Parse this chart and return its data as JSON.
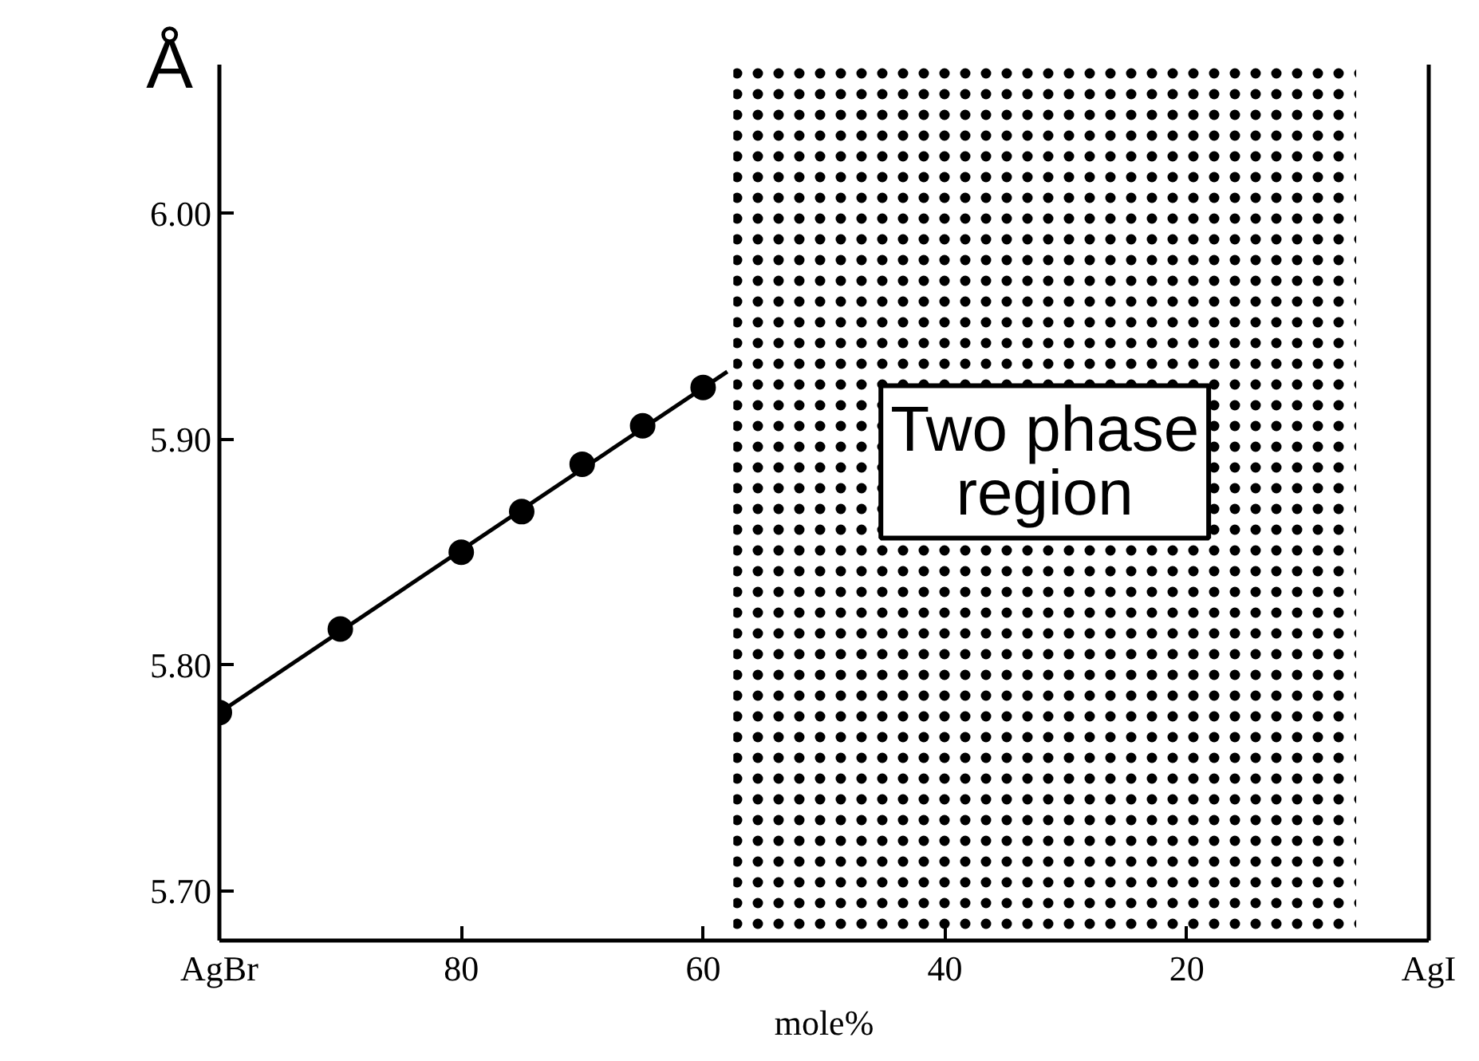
{
  "chart_data": {
    "type": "scatter",
    "ylabel": "Å",
    "xlabel": "mole%",
    "x": [
      100,
      90,
      80,
      75,
      70,
      65,
      60
    ],
    "series": [
      {
        "color": "#000000",
        "values": [
          5.779,
          5.816,
          5.85,
          5.868,
          5.889,
          5.906,
          5.923
        ],
        "marker": "circle"
      },
      {
        "type": "line",
        "color": "#000000",
        "x": [
          100,
          58
        ],
        "values": [
          5.779,
          5.93
        ],
        "marker": "none",
        "line_style": "solid"
      }
    ],
    "xlim": [
      100,
      0
    ],
    "xticks": [
      {
        "value": 100,
        "label": "AgBr"
      },
      80,
      60,
      40,
      20,
      {
        "value": 0,
        "label": "AgI"
      }
    ],
    "ylim": [
      5.678,
      6.066
    ],
    "yticks": [
      {
        "value": 5.7,
        "label": "5.70"
      },
      {
        "value": 5.8,
        "label": "5.80"
      },
      {
        "value": 5.9,
        "label": "5.90"
      },
      {
        "value": 6.0,
        "label": "6.00"
      }
    ],
    "bands": [
      {
        "axis": "x",
        "from": 57.5,
        "to": 6,
        "label": "Two phase\nregion",
        "color": "#000000"
      }
    ],
    "grid": false
  }
}
